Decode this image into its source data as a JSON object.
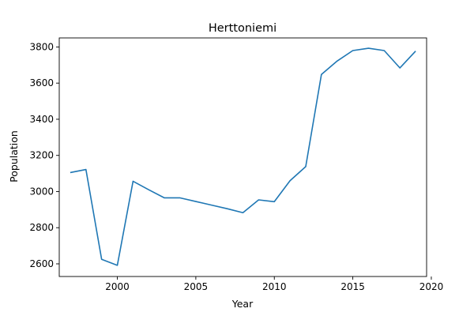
{
  "chart_data": {
    "type": "line",
    "title": "Herttoniemi",
    "xlabel": "Year",
    "ylabel": "Population",
    "xlim": [
      1996.3,
      2019.7
    ],
    "ylim": [
      2530,
      3850
    ],
    "xticks": [
      2000,
      2005,
      2010,
      2015,
      2020
    ],
    "yticks": [
      2600,
      2800,
      3000,
      3200,
      3400,
      3600,
      3800
    ],
    "grid": false,
    "line_color": "#1f77b4",
    "series": [
      {
        "x": [
          1997,
          1998,
          1999,
          2000,
          2001,
          2002,
          2003,
          2004,
          2005,
          2006,
          2007,
          2008,
          2009,
          2010,
          2011,
          2012,
          2013,
          2014,
          2015,
          2016,
          2017,
          2018,
          2019
        ],
        "values": [
          3105,
          3122,
          2625,
          2592,
          3057,
          3010,
          2965,
          2965,
          2945,
          2925,
          2905,
          2883,
          2954,
          2944,
          3060,
          3138,
          3648,
          3722,
          3780,
          3793,
          3780,
          3684,
          3777
        ]
      }
    ]
  }
}
